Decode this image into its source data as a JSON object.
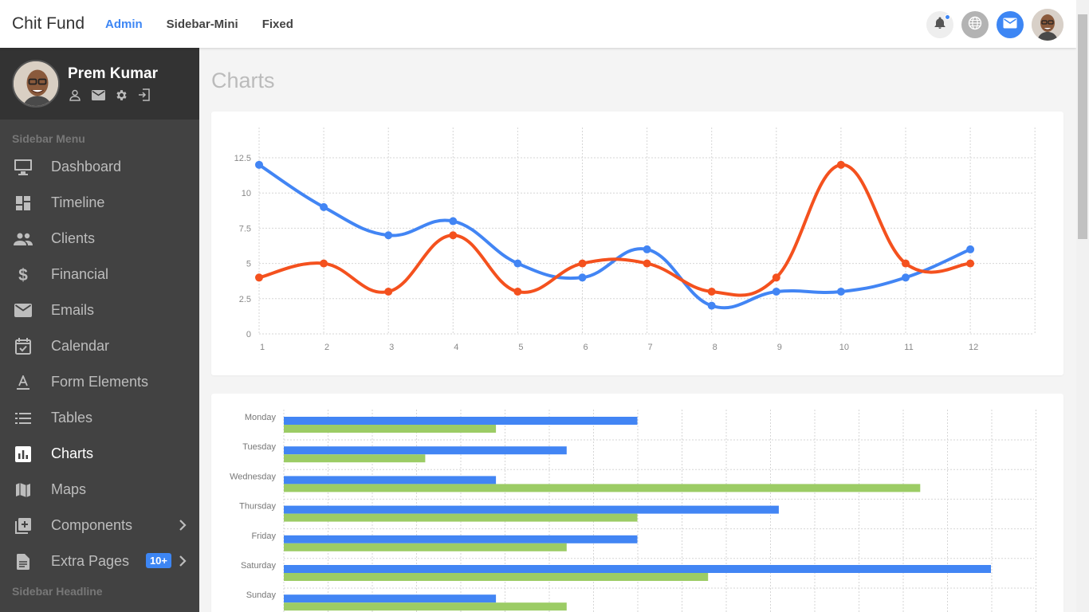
{
  "app": {
    "brand": "Chit Fund"
  },
  "topnav": [
    {
      "label": "Admin",
      "active": true
    },
    {
      "label": "Sidebar-Mini",
      "active": false
    },
    {
      "label": "Fixed",
      "active": false
    }
  ],
  "profile": {
    "name": "Prem Kumar"
  },
  "sidebar": {
    "menu_title": "Sidebar Menu",
    "headline": "Sidebar Headline",
    "items": [
      {
        "label": "Dashboard",
        "icon": "monitor-icon"
      },
      {
        "label": "Timeline",
        "icon": "dashboard-grid-icon"
      },
      {
        "label": "Clients",
        "icon": "people-icon"
      },
      {
        "label": "Financial",
        "icon": "dollar-icon"
      },
      {
        "label": "Emails",
        "icon": "envelope-icon"
      },
      {
        "label": "Calendar",
        "icon": "calendar-check-icon"
      },
      {
        "label": "Form Elements",
        "icon": "text-format-icon"
      },
      {
        "label": "Tables",
        "icon": "list-icon"
      },
      {
        "label": "Charts",
        "icon": "bar-chart-icon",
        "active": true
      },
      {
        "label": "Maps",
        "icon": "map-icon"
      },
      {
        "label": "Components",
        "icon": "library-add-icon",
        "has_submenu": true
      },
      {
        "label": "Extra Pages",
        "icon": "document-icon",
        "has_submenu": true,
        "badge": "10+"
      }
    ]
  },
  "main": {
    "title": "Charts"
  },
  "colors": {
    "accent": "#3d86f4",
    "blue_series": "#4285f4",
    "orange_series": "#f4511e",
    "green_series": "#9ccc65",
    "sidebar_bg": "#424242"
  },
  "chart_data": [
    {
      "type": "line",
      "x": [
        1,
        2,
        3,
        4,
        5,
        6,
        7,
        8,
        9,
        10,
        11,
        12
      ],
      "series": [
        {
          "values": [
            12,
            9,
            7,
            8,
            5,
            4,
            6,
            2,
            3,
            3,
            4,
            6
          ]
        },
        {
          "values": [
            4,
            5,
            3,
            7,
            3,
            5,
            5,
            3,
            4,
            12,
            5,
            5
          ]
        }
      ],
      "y_ticks": [
        "0",
        "2.5",
        "5",
        "7.5",
        "10",
        "12.5"
      ],
      "ylim": [
        0,
        12.5
      ],
      "grid": true
    },
    {
      "type": "bar",
      "orientation": "horizontal",
      "categories": [
        "Monday",
        "Tuesday",
        "Wednesday",
        "Thursday",
        "Friday",
        "Saturday",
        "Sunday"
      ],
      "series": [
        {
          "values": [
            5,
            4,
            3,
            7,
            5,
            10,
            3
          ]
        },
        {
          "values": [
            3,
            2,
            9,
            5,
            4,
            6,
            4
          ]
        }
      ],
      "xlim": [
        0,
        10.6
      ],
      "grid": true
    }
  ]
}
